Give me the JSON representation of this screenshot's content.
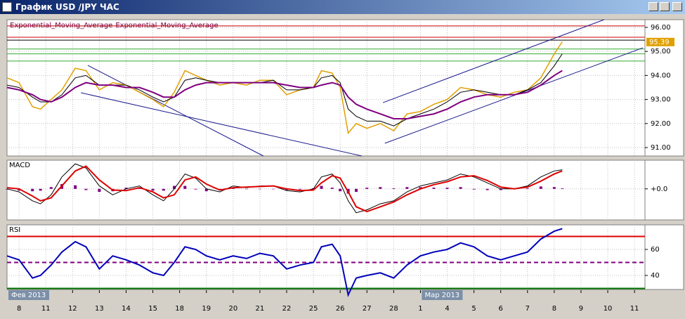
{
  "window": {
    "title": "График USD /JPY ЧАС"
  },
  "chart_data": [
    {
      "type": "line",
      "xlim": [
        -0.45,
        23.39
      ],
      "ylim": [
        90.65,
        96.32
      ],
      "yticks": [
        {
          "value": 91,
          "label": "91.00"
        },
        {
          "value": 92,
          "label": "92.00"
        },
        {
          "value": 93,
          "label": "93.00"
        },
        {
          "value": 94,
          "label": "94.00"
        },
        {
          "value": 95,
          "label": "95.00"
        },
        {
          "value": 96,
          "label": "96.00"
        }
      ],
      "grid": true,
      "last_value": 95.39,
      "hlines": [
        {
          "value": 96.06,
          "color": "#cc0000"
        },
        {
          "value": 95.59,
          "color": "#cc0000"
        },
        {
          "value": 95.47,
          "color": "#000000"
        },
        {
          "value": 95.1,
          "color": "#33aa33"
        },
        {
          "value": 94.9,
          "color": "#33aa33"
        },
        {
          "value": 94.6,
          "color": "#33aa33"
        }
      ],
      "trendlines": [
        {
          "x": [
            2.57,
            9.13
          ],
          "y": [
            94.42,
            90.65
          ]
        },
        {
          "x": [
            2.31,
            12.81
          ],
          "y": [
            93.28,
            90.65
          ]
        },
        {
          "x": [
            13.6,
            21.86
          ],
          "y": [
            92.87,
            96.32
          ]
        },
        {
          "x": [
            13.67,
            23.31
          ],
          "y": [
            91.18,
            95.15
          ]
        }
      ],
      "x": [
        -0.45,
        0,
        0.5,
        0.8,
        1.2,
        1.6,
        2.1,
        2.5,
        3,
        3.5,
        4,
        4.5,
        5,
        5.4,
        5.8,
        6.2,
        6.6,
        7,
        7.5,
        8,
        8.5,
        9,
        9.5,
        10,
        10.5,
        11,
        11.3,
        11.7,
        12,
        12.3,
        12.6,
        13,
        13.5,
        14,
        14.5,
        15,
        15.5,
        16,
        16.5,
        17,
        17.5,
        18,
        18.5,
        19,
        19.5,
        20,
        20.3
      ],
      "series": [
        {
          "color": "#e0a000",
          "values": [
            93.9,
            93.7,
            92.7,
            92.6,
            93.0,
            93.4,
            94.3,
            94.2,
            93.4,
            93.7,
            93.6,
            93.3,
            93.0,
            92.7,
            93.3,
            94.2,
            94.0,
            93.8,
            93.6,
            93.7,
            93.6,
            93.8,
            93.8,
            93.2,
            93.4,
            93.5,
            94.2,
            94.1,
            93.5,
            91.6,
            92.0,
            91.8,
            92.0,
            91.7,
            92.4,
            92.5,
            92.8,
            93.0,
            93.5,
            93.4,
            93.2,
            93.1,
            93.3,
            93.4,
            93.9,
            94.9,
            95.4
          ]
        },
        {
          "name": "Exponential_Moving_Average",
          "color": "#000000",
          "values": [
            93.6,
            93.5,
            93.1,
            92.9,
            92.9,
            93.2,
            93.9,
            94.0,
            93.6,
            93.6,
            93.6,
            93.4,
            93.1,
            92.9,
            93.1,
            93.8,
            93.9,
            93.8,
            93.7,
            93.7,
            93.7,
            93.7,
            93.8,
            93.4,
            93.4,
            93.5,
            93.9,
            94.0,
            93.7,
            92.6,
            92.3,
            92.1,
            92.1,
            91.9,
            92.2,
            92.4,
            92.6,
            92.9,
            93.3,
            93.4,
            93.3,
            93.2,
            93.2,
            93.4,
            93.7,
            94.4,
            94.9
          ]
        },
        {
          "name": "Exponential_Moving_Average",
          "color": "#800080",
          "values": [
            93.5,
            93.4,
            93.2,
            93.0,
            92.9,
            93.1,
            93.5,
            93.7,
            93.6,
            93.6,
            93.5,
            93.5,
            93.3,
            93.1,
            93.1,
            93.4,
            93.6,
            93.7,
            93.7,
            93.7,
            93.7,
            93.7,
            93.7,
            93.6,
            93.5,
            93.5,
            93.6,
            93.7,
            93.6,
            93.1,
            92.8,
            92.6,
            92.4,
            92.2,
            92.2,
            92.3,
            92.4,
            92.6,
            92.9,
            93.1,
            93.2,
            93.2,
            93.2,
            93.3,
            93.6,
            94.0,
            94.2
          ]
        }
      ]
    },
    {
      "type": "line",
      "title": "MACD",
      "xlim": [
        -0.45,
        23.39
      ],
      "ylim": [
        -0.52,
        0.48
      ],
      "yticks": [
        {
          "value": 0,
          "label": "+0.0"
        }
      ],
      "grid": true,
      "x": [
        -0.45,
        0,
        0.5,
        0.8,
        1.2,
        1.6,
        2.1,
        2.5,
        3,
        3.5,
        4,
        4.5,
        5,
        5.4,
        5.8,
        6.2,
        6.6,
        7,
        7.5,
        8,
        8.5,
        9,
        9.5,
        10,
        10.5,
        11,
        11.3,
        11.7,
        12,
        12.3,
        12.6,
        13,
        13.5,
        14,
        14.5,
        15,
        15.5,
        16,
        16.5,
        17,
        17.5,
        18,
        18.5,
        19,
        19.5,
        20,
        20.3
      ],
      "series": [
        {
          "color": "#800080",
          "type": "bar",
          "values": [
            -0.01,
            -0.03,
            -0.04,
            -0.03,
            0.03,
            0.08,
            0.06,
            -0.02,
            -0.05,
            -0.04,
            0.02,
            0.02,
            -0.03,
            -0.03,
            0.05,
            0.05,
            -0.01,
            -0.04,
            -0.02,
            0.02,
            0,
            0,
            0,
            -0.02,
            -0.01,
            0.01,
            0.05,
            0.02,
            -0.04,
            -0.08,
            -0.05,
            0.02,
            0.03,
            0.01,
            0.03,
            0.03,
            0.02,
            0.02,
            0.03,
            -0.01,
            -0.02,
            -0.02,
            0,
            0.01,
            0.04,
            0.03,
            0.01
          ]
        },
        {
          "color": "#000000",
          "values": [
            0,
            -0.05,
            -0.2,
            -0.25,
            -0.1,
            0.2,
            0.42,
            0.35,
            0.05,
            -0.1,
            0,
            0.05,
            -0.1,
            -0.2,
            0,
            0.25,
            0.18,
            0,
            -0.05,
            0.05,
            0.02,
            0.05,
            0.05,
            -0.03,
            -0.05,
            0,
            0.2,
            0.25,
            0.1,
            -0.2,
            -0.4,
            -0.35,
            -0.25,
            -0.2,
            -0.05,
            0.05,
            0.1,
            0.15,
            0.25,
            0.2,
            0.1,
            0,
            0,
            0.05,
            0.2,
            0.3,
            0.32
          ]
        },
        {
          "color": "#dd0000",
          "values": [
            0.02,
            0,
            -0.12,
            -0.2,
            -0.15,
            0.05,
            0.3,
            0.38,
            0.15,
            -0.02,
            -0.03,
            0.02,
            -0.05,
            -0.15,
            -0.1,
            0.15,
            0.2,
            0.08,
            -0.02,
            0.02,
            0.03,
            0.04,
            0.05,
            0,
            -0.03,
            -0.02,
            0.1,
            0.22,
            0.18,
            -0.05,
            -0.3,
            -0.38,
            -0.3,
            -0.22,
            -0.1,
            0,
            0.07,
            0.12,
            0.2,
            0.22,
            0.14,
            0.03,
            0,
            0.03,
            0.13,
            0.25,
            0.3
          ]
        }
      ]
    },
    {
      "type": "line",
      "title": "RSI",
      "xlim": [
        -0.45,
        23.39
      ],
      "ylim": [
        29.2,
        78.9
      ],
      "yticks": [
        40,
        60
      ],
      "grid": true,
      "xticks": [
        {
          "value": 0,
          "label": "8"
        },
        {
          "value": 1,
          "label": "11"
        },
        {
          "value": 2,
          "label": "12"
        },
        {
          "value": 3,
          "label": "13"
        },
        {
          "value": 4,
          "label": "14"
        },
        {
          "value": 5,
          "label": "15"
        },
        {
          "value": 6,
          "label": "18"
        },
        {
          "value": 7,
          "label": "19"
        },
        {
          "value": 8,
          "label": "20"
        },
        {
          "value": 9,
          "label": "21"
        },
        {
          "value": 10,
          "label": "22"
        },
        {
          "value": 11,
          "label": "25"
        },
        {
          "value": 12,
          "label": "26"
        },
        {
          "value": 13,
          "label": "27"
        },
        {
          "value": 14,
          "label": "28"
        },
        {
          "value": 15,
          "label": "1"
        },
        {
          "value": 16,
          "label": "4"
        },
        {
          "value": 17,
          "label": "5"
        },
        {
          "value": 18,
          "label": "6"
        },
        {
          "value": 19,
          "label": "7"
        },
        {
          "value": 20,
          "label": "8"
        },
        {
          "value": 21,
          "label": "9"
        },
        {
          "value": 22,
          "label": "10"
        },
        {
          "value": 23,
          "label": "11"
        }
      ],
      "annotations": [
        {
          "text": "Фев 2013",
          "x": -0.45
        },
        {
          "text": "Мар 2013",
          "x": 15
        }
      ],
      "hlines": [
        {
          "value": 70,
          "color": "#dd0000"
        },
        {
          "value": 50,
          "color": "#800080",
          "dash": true
        },
        {
          "value": 30,
          "color": "#007700"
        }
      ],
      "x": [
        -0.45,
        0,
        0.5,
        0.8,
        1.2,
        1.6,
        2.1,
        2.5,
        3,
        3.5,
        4,
        4.5,
        5,
        5.4,
        5.8,
        6.2,
        6.6,
        7,
        7.5,
        8,
        8.5,
        9,
        9.5,
        10,
        10.5,
        11,
        11.3,
        11.7,
        12,
        12.3,
        12.6,
        13,
        13.5,
        14,
        14.5,
        15,
        15.5,
        16,
        16.5,
        17,
        17.5,
        18,
        18.5,
        19,
        19.5,
        20,
        20.3
      ],
      "series": [
        {
          "color": "#0000bb",
          "values": [
            55,
            52,
            38,
            40,
            48,
            58,
            66,
            62,
            45,
            55,
            52,
            48,
            42,
            40,
            50,
            62,
            60,
            55,
            52,
            55,
            53,
            57,
            55,
            45,
            48,
            50,
            62,
            64,
            55,
            25,
            38,
            40,
            42,
            38,
            48,
            55,
            58,
            60,
            65,
            62,
            55,
            52,
            55,
            58,
            68,
            74,
            76
          ]
        }
      ]
    }
  ]
}
